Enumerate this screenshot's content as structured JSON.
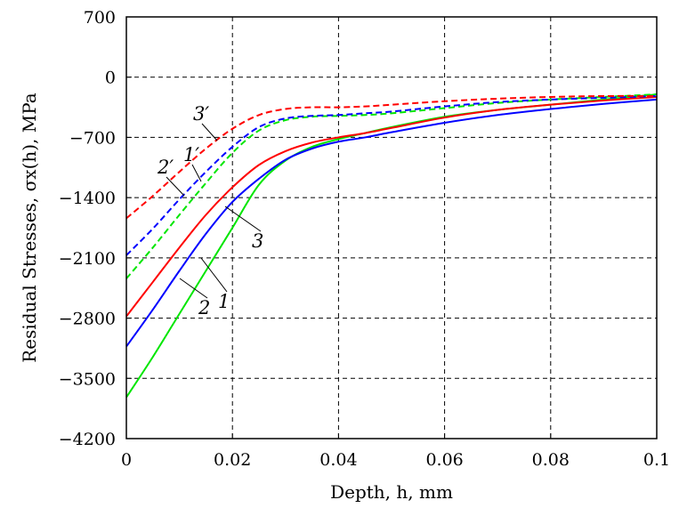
{
  "chart_data": {
    "type": "line",
    "title": "",
    "xlabel": "Depth, h, mm",
    "ylabel": "Residual Stresses, σx(h), MPa",
    "xlim": [
      0,
      0.1
    ],
    "ylim": [
      -4200,
      700
    ],
    "x_ticks": [
      0,
      0.02,
      0.04,
      0.06,
      0.08,
      0.1
    ],
    "x_tick_labels": [
      "0",
      "0.02",
      "0.04",
      "0.06",
      "0.08",
      "0.1"
    ],
    "y_ticks": [
      700,
      0,
      -700,
      -1400,
      -2100,
      -2800,
      -3500,
      -4200
    ],
    "y_tick_labels": [
      "700",
      "0",
      "−700",
      "−1400",
      "−2100",
      "−2800",
      "−3500",
      "−4200"
    ],
    "grid": true,
    "legend": "none",
    "x": [
      0,
      0.005,
      0.01,
      0.015,
      0.02,
      0.025,
      0.03,
      0.035,
      0.04,
      0.045,
      0.05,
      0.06,
      0.07,
      0.08,
      0.09,
      0.1
    ],
    "series": [
      {
        "name": "1",
        "color": "#00e600",
        "style": "solid",
        "values": [
          -3720,
          -3250,
          -2750,
          -2250,
          -1750,
          -1250,
          -970,
          -810,
          -720,
          -650,
          -580,
          -460,
          -380,
          -320,
          -260,
          -200
        ]
      },
      {
        "name": "2",
        "color": "#0000ff",
        "style": "solid",
        "values": [
          -3130,
          -2700,
          -2250,
          -1820,
          -1450,
          -1180,
          -960,
          -830,
          -750,
          -700,
          -640,
          -530,
          -440,
          -370,
          -310,
          -260
        ]
      },
      {
        "name": "3",
        "color": "#ff0000",
        "style": "solid",
        "values": [
          -2780,
          -2380,
          -1980,
          -1600,
          -1280,
          -1020,
          -860,
          -760,
          -700,
          -650,
          -590,
          -470,
          -380,
          -320,
          -270,
          -230
        ]
      },
      {
        "name": "1′",
        "color": "#00e600",
        "style": "dashed",
        "values": [
          -2340,
          -1980,
          -1600,
          -1230,
          -880,
          -620,
          -500,
          -460,
          -450,
          -440,
          -420,
          -360,
          -300,
          -260,
          -230,
          -200
        ]
      },
      {
        "name": "2′",
        "color": "#0000ff",
        "style": "dashed",
        "values": [
          -2070,
          -1760,
          -1420,
          -1100,
          -810,
          -580,
          -480,
          -450,
          -440,
          -420,
          -400,
          -340,
          -290,
          -260,
          -240,
          -220
        ]
      },
      {
        "name": "3′",
        "color": "#ff0000",
        "style": "dashed",
        "values": [
          -1640,
          -1380,
          -1100,
          -830,
          -600,
          -440,
          -370,
          -350,
          -350,
          -340,
          -320,
          -280,
          -250,
          -230,
          -220,
          -220
        ]
      }
    ],
    "annotations": [
      {
        "text": "1",
        "series": "1"
      },
      {
        "text": "2",
        "series": "2"
      },
      {
        "text": "3",
        "series": "3"
      },
      {
        "text": "1′",
        "series": "1′"
      },
      {
        "text": "2′",
        "series": "2′"
      },
      {
        "text": "3′",
        "series": "3′"
      }
    ]
  }
}
